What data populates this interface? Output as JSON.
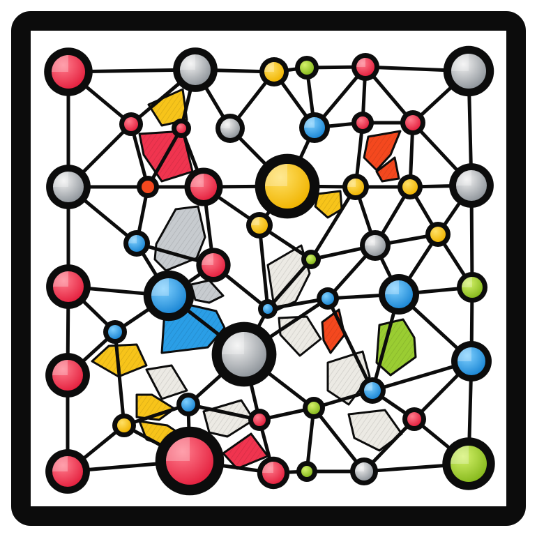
{
  "diagram": {
    "type": "network-graph",
    "style": "stained-glass",
    "colors": {
      "red": "#f0344f",
      "gray": "#9aa0a6",
      "yellow": "#f7c41a",
      "green": "#9acd32",
      "blue": "#2a9ee6",
      "orange": "#f4481e",
      "outline": "#0c0c0c",
      "frame": "#0c0c0c",
      "background": "#ffffff"
    }
  }
}
